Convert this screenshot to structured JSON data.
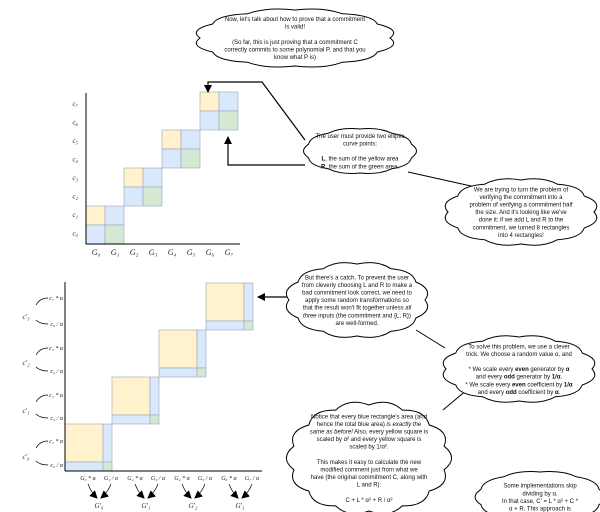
{
  "top_chart": {
    "y_labels": [
      "c₇",
      "c₆",
      "c₅",
      "c₄",
      "c₃",
      "c₂",
      "c₁",
      "c₀"
    ],
    "x_labels": [
      "G₀",
      "G₁",
      "G₂",
      "G₃",
      "G₄",
      "G₅",
      "G₆",
      "G₇"
    ]
  },
  "bottom_chart": {
    "y_labels": [
      "c₇ * α",
      "c₆ / α",
      "c₅ * α",
      "c₄ / α",
      "c₃ * α",
      "c₂ / α",
      "c₁ * α",
      "c₀ / α"
    ],
    "bracket_labels": [
      "c'₃",
      "c'₂",
      "c'₁",
      "c'₀"
    ],
    "x_labels": [
      "G₀ * α",
      "G₁ / α",
      "G₂ * α",
      "G₃ / α",
      "G₄ * α",
      "G₅ / α",
      "G₆ * α",
      "G₇ / α"
    ],
    "g_prime_labels": [
      "G'₀",
      "G'₁",
      "G'₂",
      "G'₃"
    ]
  },
  "colors": {
    "yellow": "#fff2cc",
    "blue": "#dae8fc",
    "green": "#d5e8d4",
    "cell_stroke": "#9aa7b8"
  },
  "clouds": {
    "intro": [
      [
        {
          "t": "Now, let's talk about how to prove that a commitment"
        }
      ],
      [
        {
          "t": "is valid!"
        }
      ],
      [
        {
          "t": ""
        }
      ],
      [
        {
          "t": "(So far, this is just proving that a commitment C"
        }
      ],
      [
        {
          "t": "correctly commits to "
        },
        {
          "t": "some",
          "i": true
        },
        {
          "t": " polynomial P, and that you"
        }
      ],
      [
        {
          "t": "know what P is)"
        }
      ]
    ],
    "lr": [
      [
        {
          "t": "The user must provide two elliptic"
        }
      ],
      [
        {
          "t": "curve points:"
        }
      ],
      [
        {
          "t": ""
        }
      ],
      [
        {
          "t": "L",
          "b": true
        },
        {
          "t": ", the sum of the yellow area"
        }
      ],
      [
        {
          "t": "R",
          "b": true
        },
        {
          "t": ", the sum of the green area."
        }
      ]
    ],
    "halving": [
      [
        {
          "t": "We are trying to turn the problem of"
        }
      ],
      [
        {
          "t": "verifying the commitment into a"
        }
      ],
      [
        {
          "t": "problem of verifying a commitment half"
        }
      ],
      [
        {
          "t": "the size. And it's looking like we've"
        }
      ],
      [
        {
          "t": "done it: if we add L and R to the"
        }
      ],
      [
        {
          "t": "commitment, we turned 8 rectangles"
        }
      ],
      [
        {
          "t": "into 4 rectangles!"
        }
      ]
    ],
    "catch": [
      [
        {
          "t": "But there's a catch. To prevent the user"
        }
      ],
      [
        {
          "t": "from cleverly choosing L and R to make a"
        }
      ],
      [
        {
          "t": "bad commitment look correct, we need to"
        }
      ],
      [
        {
          "t": "apply some random transformations so"
        }
      ],
      [
        {
          "t": "that the result won't fit together unless "
        },
        {
          "t": "all",
          "i": true
        }
      ],
      [
        {
          "t": "three",
          "i": true
        },
        {
          "t": " inputs (the commitment and {L, R})"
        }
      ],
      [
        {
          "t": "are well-formed."
        }
      ]
    ],
    "trick": [
      [
        {
          "t": "To solve this problem, we use a clever"
        }
      ],
      [
        {
          "t": "trick. We choose a random value α, and"
        }
      ],
      [
        {
          "t": ""
        }
      ],
      [
        {
          "t": "* We scale every "
        },
        {
          "t": "even",
          "b": true
        },
        {
          "t": " generator by "
        },
        {
          "t": "α",
          "b": true
        }
      ],
      [
        {
          "t": "and every "
        },
        {
          "t": "odd",
          "b": true
        },
        {
          "t": " generator by "
        },
        {
          "t": "1/α",
          "b": true
        },
        {
          "t": "."
        }
      ],
      [
        {
          "t": "* We scale every "
        },
        {
          "t": "even",
          "b": true
        },
        {
          "t": " coefficient by "
        },
        {
          "t": "1/α",
          "b": true
        }
      ],
      [
        {
          "t": "and every "
        },
        {
          "t": "odd",
          "b": true
        },
        {
          "t": " coefficient by "
        },
        {
          "t": "α",
          "b": true
        },
        {
          "t": "."
        }
      ]
    ],
    "notice": [
      [
        {
          "t": "Notice that every blue rectangle's area (and"
        }
      ],
      [
        {
          "t": "hence the total blue area) "
        },
        {
          "t": "is exactly the",
          "i": true
        }
      ],
      [
        {
          "t": "same as before!",
          "i": true
        },
        {
          "t": " Also, every yellow square is"
        }
      ],
      [
        {
          "t": "scaled by α² and every yellow square is"
        }
      ],
      [
        {
          "t": "scaled by 1/α²."
        }
      ],
      [
        {
          "t": ""
        }
      ],
      [
        {
          "t": "This makes it easy to calculate the new"
        }
      ],
      [
        {
          "t": "modified comment just from what we"
        }
      ],
      [
        {
          "t": "have (the original commitment C, along with"
        }
      ],
      [
        {
          "t": "L and R):"
        }
      ],
      [
        {
          "t": ""
        }
      ],
      [
        {
          "t": "C + L * α² + R / α²"
        }
      ]
    ],
    "skip": [
      [
        {
          "t": "Some implementations skip"
        }
      ],
      [
        {
          "t": "dividing by α."
        }
      ],
      [
        {
          "t": "In that case, C' = L * α² + C *"
        }
      ],
      [
        {
          "t": "α + R. This approach is"
        }
      ]
    ]
  }
}
